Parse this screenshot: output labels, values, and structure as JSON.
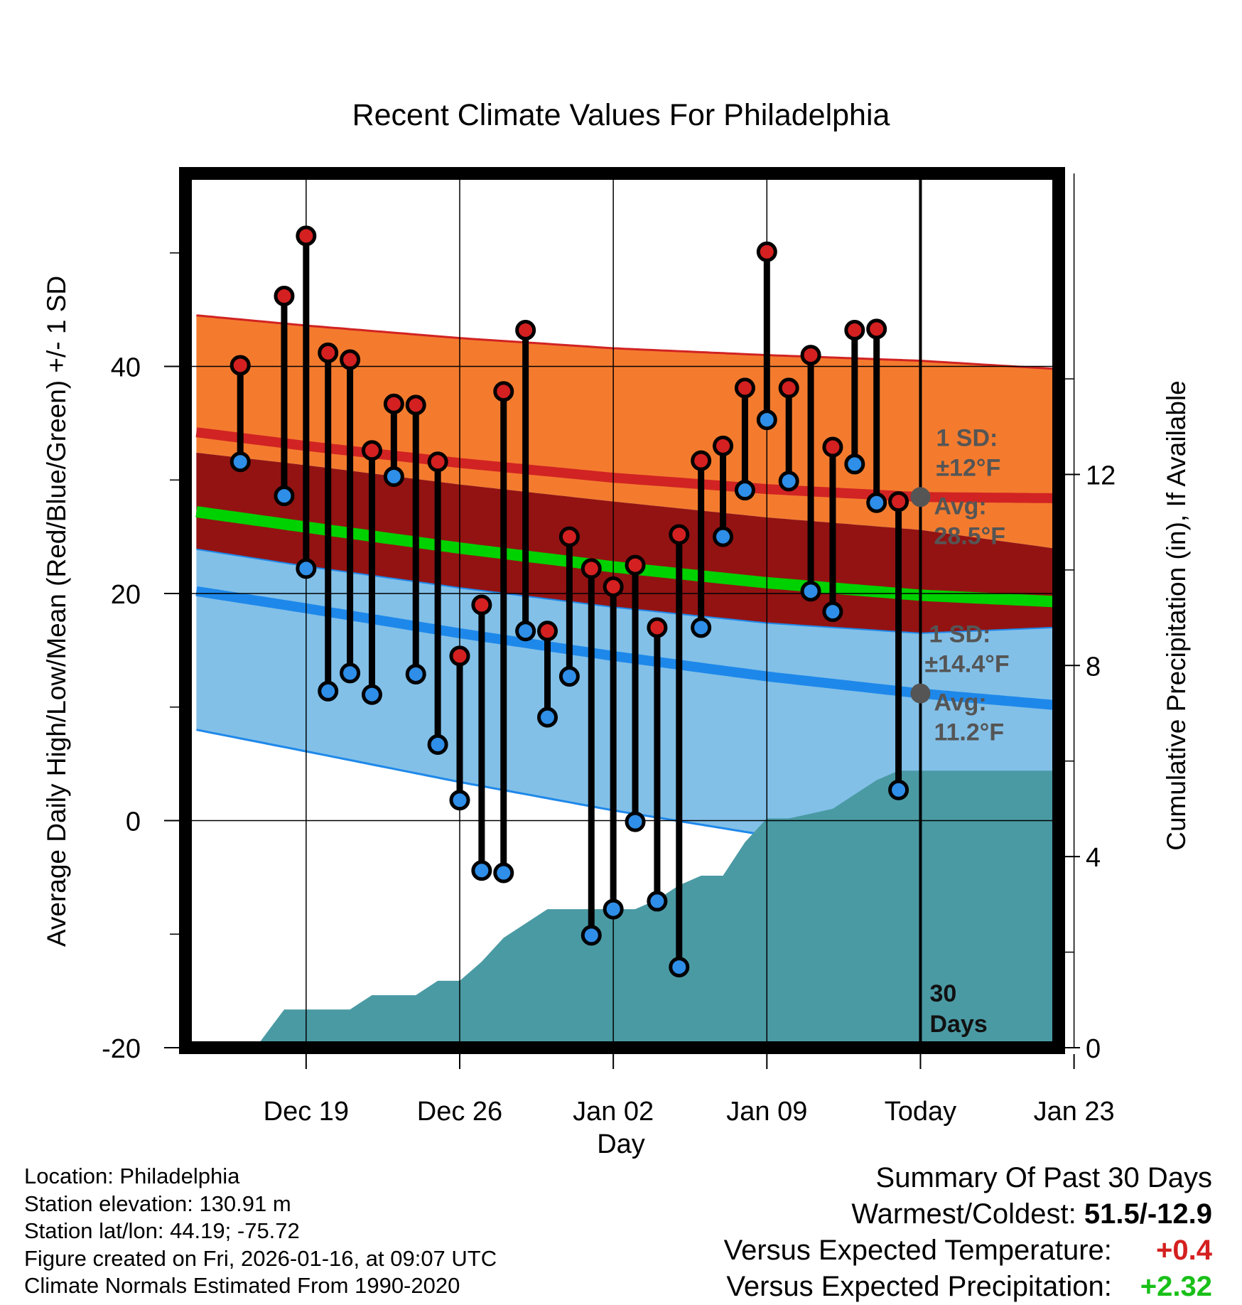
{
  "chart_data": {
    "type": "line",
    "title": "Recent Climate Values For Philadelphia",
    "xlabel": "Day",
    "ylabel": "Average Daily High/Low/Mean (Red/Blue/Green) +/- 1 SD",
    "y2label": "Cumulative Precipitation (in), If Available",
    "x_range_days": [
      -33.5,
      6.3
    ],
    "ylim": [
      -20,
      57
    ],
    "y2lim": [
      0,
      18.3
    ],
    "x_tick_days": [
      -28,
      -21,
      -14,
      -7,
      0,
      7
    ],
    "x_tick_labels": [
      "Dec 19",
      "Dec 26",
      "Jan 02",
      "Jan 09",
      "Today",
      "Jan 23"
    ],
    "y_ticks": [
      -20,
      0,
      20,
      40
    ],
    "y2_ticks": [
      0,
      4,
      8,
      12
    ],
    "grid": true,
    "colors": {
      "high_band": "#f47b2e",
      "high_line": "#d12323",
      "overlap_band": "#931313",
      "low_band": "#82c0e8",
      "low_line": "#1e88ea",
      "mean_line": "#00d100",
      "precip": "#4a9aa4",
      "high_marker": "#d42020",
      "low_marker": "#2e8ee8",
      "today_marker": "#555555",
      "annotation": "#555555"
    },
    "normals": {
      "days": [
        -33,
        -28,
        -21,
        -14,
        -7,
        0,
        6
      ],
      "high_mean": [
        34.2,
        33.0,
        31.5,
        30.2,
        29.2,
        28.5,
        28.4
      ],
      "high_sd": [
        10.3,
        10.6,
        11.0,
        11.4,
        11.8,
        12.0,
        11.4
      ],
      "low_mean": [
        20.2,
        18.7,
        16.5,
        14.5,
        12.7,
        11.2,
        10.2
      ],
      "low_sd": [
        12.2,
        12.6,
        13.1,
        13.6,
        14.0,
        14.4,
        13.8
      ],
      "mean": [
        27.2,
        25.85,
        24.0,
        22.35,
        20.95,
        19.85,
        19.3
      ]
    },
    "days": [
      -31,
      -29,
      -28,
      -27,
      -26,
      -25,
      -24,
      -23,
      -22,
      -21,
      -20,
      -19,
      -18,
      -17,
      -16,
      -15,
      -14,
      -13,
      -12,
      -11,
      -10,
      -9,
      -8,
      -7,
      -6,
      -5,
      -4,
      -3,
      -2,
      -1
    ],
    "highs": [
      40.1,
      46.2,
      51.5,
      41.2,
      40.6,
      32.6,
      36.7,
      36.6,
      31.6,
      14.5,
      19.0,
      37.8,
      43.2,
      16.7,
      25.0,
      22.2,
      20.6,
      22.5,
      17.0,
      25.2,
      31.7,
      33.0,
      38.1,
      50.1,
      38.1,
      41.0,
      32.9,
      43.2,
      43.3,
      28.1
    ],
    "lows": [
      31.6,
      28.6,
      22.2,
      11.4,
      13.0,
      11.1,
      30.3,
      12.9,
      6.7,
      1.8,
      -4.4,
      -4.6,
      16.7,
      9.1,
      12.7,
      -10.1,
      -7.8,
      -0.1,
      -7.1,
      -12.9,
      17.0,
      25.0,
      29.1,
      35.3,
      29.9,
      20.2,
      18.4,
      31.4,
      28.0,
      2.7
    ],
    "precip_cumulative": {
      "days": [
        -33.5,
        -31.5,
        -30.3,
        -29.0,
        -28.0,
        -26.0,
        -25.0,
        -24.0,
        -23.0,
        -22.0,
        -21.0,
        -20.0,
        -19.0,
        -18.0,
        -17.0,
        -16.0,
        -15.0,
        -14.0,
        -13.0,
        -12.0,
        -11.0,
        -10.0,
        -9.0,
        -8.0,
        -7.0,
        -6.0,
        -5.0,
        -4.0,
        -3.0,
        -2.0,
        -1.0,
        0.0,
        6.3
      ],
      "values": [
        0,
        0,
        0,
        0.8,
        0.8,
        0.8,
        1.1,
        1.1,
        1.1,
        1.4,
        1.4,
        1.8,
        2.3,
        2.6,
        2.9,
        2.9,
        2.9,
        2.9,
        2.9,
        3.1,
        3.4,
        3.6,
        3.6,
        4.3,
        4.8,
        4.8,
        4.9,
        5.0,
        5.3,
        5.6,
        5.8,
        5.8,
        5.8
      ]
    },
    "annotations": {
      "high_sd": [
        "1 SD:",
        "±12°F"
      ],
      "high_avg": [
        "Avg:",
        "28.5°F"
      ],
      "low_sd": [
        "1 SD:",
        "±14.4°F"
      ],
      "low_avg": [
        "Avg:",
        "11.2°F"
      ],
      "period": [
        "30",
        "Days"
      ],
      "today_high": 28.5,
      "today_low": 11.2
    }
  },
  "info": {
    "location": "Location: Philadelphia",
    "elevation": "Station elevation: 130.91 m",
    "latlon": "Station lat/lon: 44.19; -75.72",
    "created": "Figure created on Fri, 2026-01-16, at 09:07 UTC",
    "normals": "Climate Normals Estimated From 1990-2020"
  },
  "summary": {
    "heading": "Summary Of Past 30 Days",
    "warmest_label": "Warmest/Coldest:",
    "warmest_value": "51.5/-12.9",
    "temp_label": "Versus Expected Temperature:",
    "temp_value": "+0.4",
    "precip_label": "Versus Expected Precipitation:",
    "precip_value": "+2.32"
  }
}
